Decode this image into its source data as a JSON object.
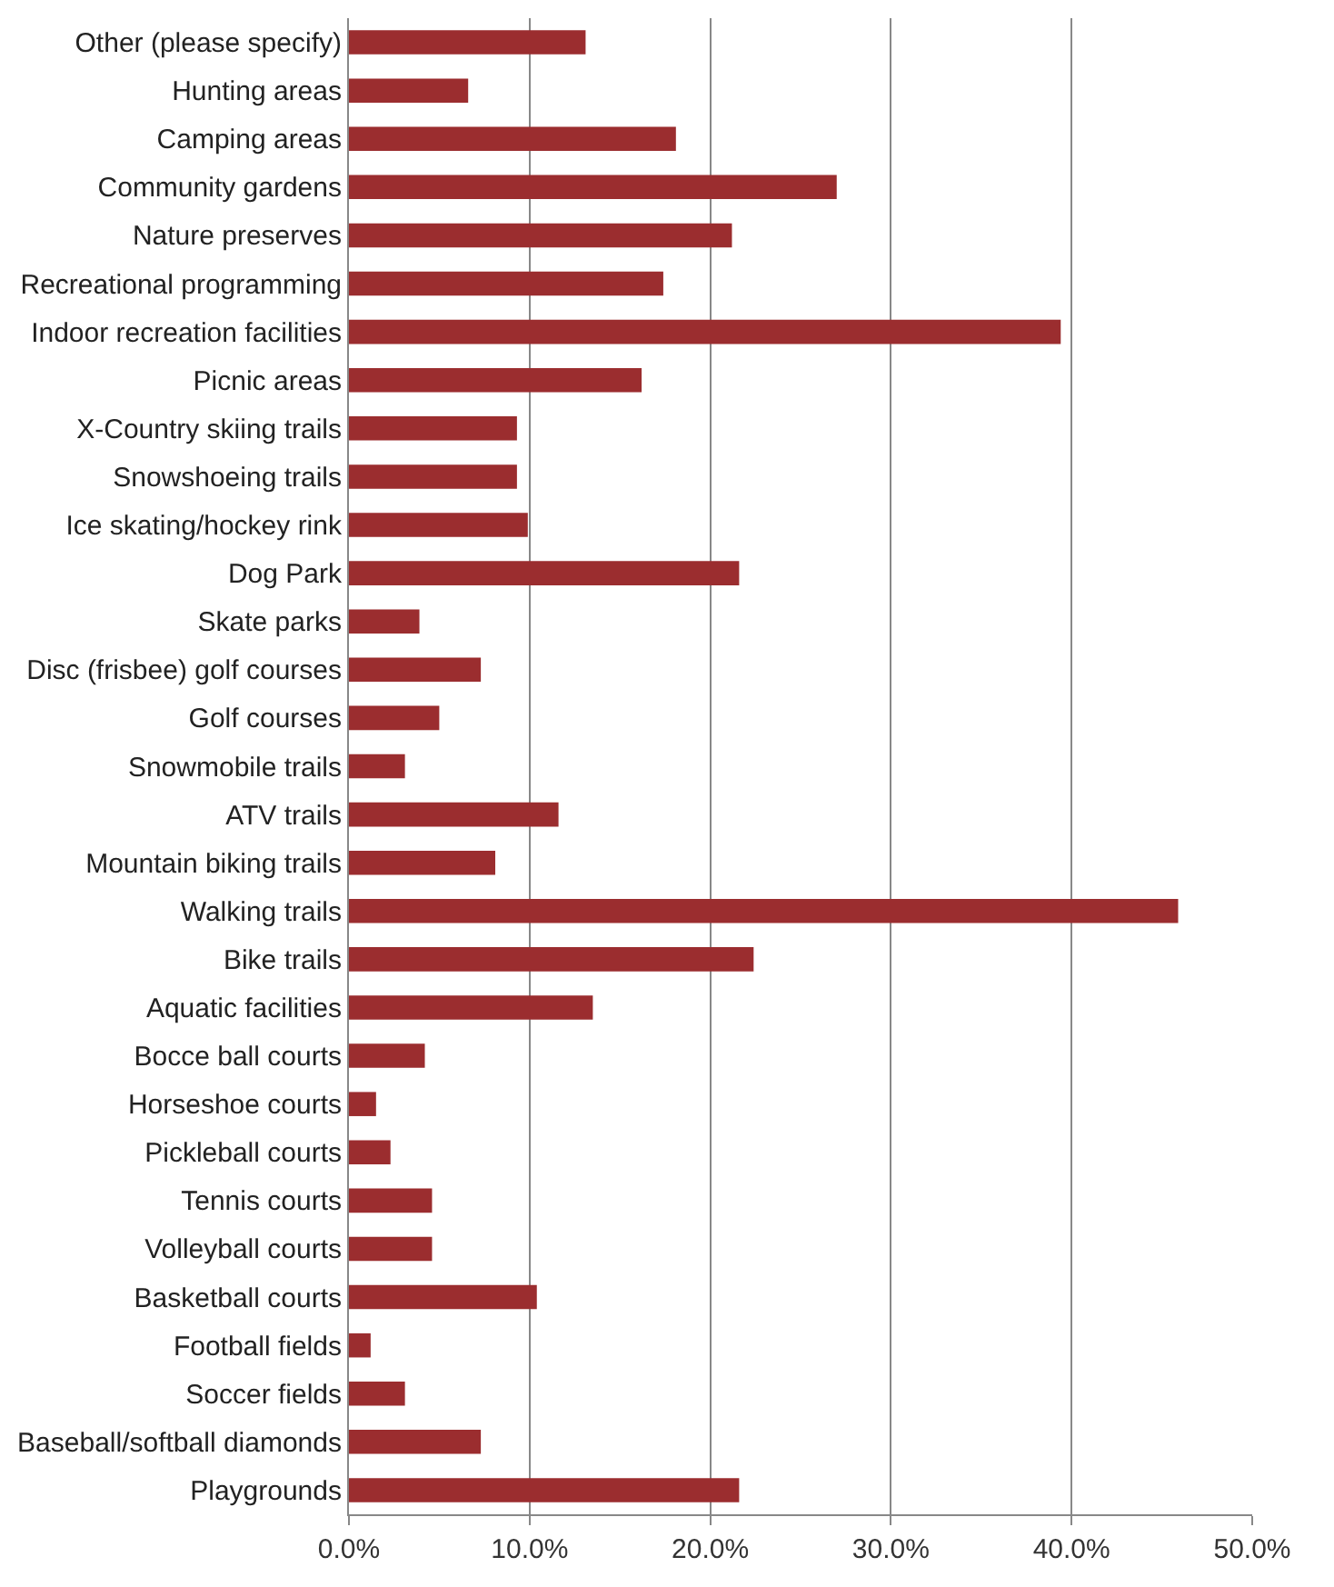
{
  "chart_data": {
    "type": "bar",
    "orientation": "horizontal",
    "color": "#9b2d2f",
    "categories": [
      "Other (please specify)",
      "Hunting areas",
      "Camping areas",
      "Community gardens",
      "Nature preserves",
      "Recreational programming",
      "Indoor recreation facilities",
      "Picnic areas",
      "X-Country skiing trails",
      "Snowshoeing trails",
      "Ice skating/hockey rink",
      "Dog Park",
      "Skate parks",
      "Disc (frisbee) golf courses",
      "Golf courses",
      "Snowmobile trails",
      "ATV trails",
      "Mountain biking trails",
      "Walking trails",
      "Bike trails",
      "Aquatic facilities",
      "Bocce ball courts",
      "Horseshoe courts",
      "Pickleball courts",
      "Tennis courts",
      "Volleyball courts",
      "Basketball courts",
      "Football fields",
      "Soccer fields",
      "Baseball/softball diamonds",
      "Playgrounds"
    ],
    "values": [
      13.1,
      6.6,
      18.1,
      27.0,
      21.2,
      17.4,
      39.4,
      16.2,
      9.3,
      9.3,
      9.9,
      21.6,
      3.9,
      7.3,
      5.0,
      3.1,
      11.6,
      8.1,
      45.9,
      22.4,
      13.5,
      4.2,
      1.5,
      2.3,
      4.6,
      4.6,
      10.4,
      1.2,
      3.1,
      7.3,
      21.6
    ],
    "xlim": [
      0,
      50
    ],
    "xticks": [
      {
        "value": 0,
        "label": "0.0%"
      },
      {
        "value": 10,
        "label": "10.0%"
      },
      {
        "value": 20,
        "label": "20.0%"
      },
      {
        "value": 30,
        "label": "30.0%"
      },
      {
        "value": 40,
        "label": "40.0%"
      },
      {
        "value": 50,
        "label": "50.0%"
      }
    ],
    "grid": "x"
  }
}
